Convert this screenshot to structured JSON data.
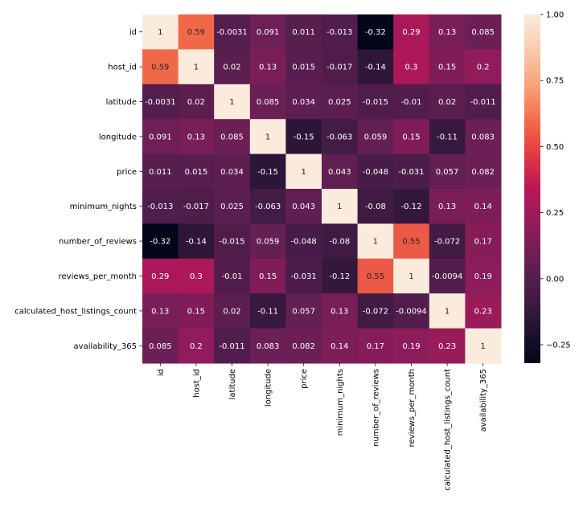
{
  "chart_data": {
    "type": "heatmap",
    "title": "",
    "xlabel": "",
    "ylabel": "",
    "labels": [
      "id",
      "host_id",
      "latitude",
      "longitude",
      "price",
      "minimum_nights",
      "number_of_reviews",
      "reviews_per_month",
      "calculated_host_listings_count",
      "availability_365"
    ],
    "matrix": [
      [
        1,
        0.59,
        -0.0031,
        0.091,
        0.011,
        -0.013,
        -0.32,
        0.29,
        0.13,
        0.085
      ],
      [
        0.59,
        1,
        0.02,
        0.13,
        0.015,
        -0.017,
        -0.14,
        0.3,
        0.15,
        0.2
      ],
      [
        -0.0031,
        0.02,
        1,
        0.085,
        0.034,
        0.025,
        -0.015,
        -0.01,
        0.02,
        -0.011
      ],
      [
        0.091,
        0.13,
        0.085,
        1,
        -0.15,
        -0.063,
        0.059,
        0.15,
        -0.11,
        0.083
      ],
      [
        0.011,
        0.015,
        0.034,
        -0.15,
        1,
        0.043,
        -0.048,
        -0.031,
        0.057,
        0.082
      ],
      [
        -0.013,
        -0.017,
        0.025,
        -0.063,
        0.043,
        1,
        -0.08,
        -0.12,
        0.13,
        0.14
      ],
      [
        -0.32,
        -0.14,
        -0.015,
        0.059,
        -0.048,
        -0.08,
        1,
        0.55,
        -0.072,
        0.17
      ],
      [
        0.29,
        0.3,
        -0.01,
        0.15,
        -0.031,
        -0.12,
        0.55,
        1,
        -0.0094,
        0.19
      ],
      [
        0.13,
        0.15,
        0.02,
        -0.11,
        0.057,
        0.13,
        -0.072,
        -0.0094,
        1,
        0.23
      ],
      [
        0.085,
        0.2,
        -0.011,
        0.083,
        0.082,
        0.14,
        0.17,
        0.19,
        0.23,
        1
      ]
    ],
    "annotated": true,
    "colormap": "rocket",
    "colorbar": {
      "range": [
        -0.32,
        1.0
      ],
      "ticks": [
        1.0,
        0.75,
        0.5,
        0.25,
        0.0,
        -0.25
      ],
      "tick_labels": [
        "1.00",
        "0.75",
        "0.50",
        "0.25",
        "0.00",
        "−0.25"
      ]
    },
    "colors": {
      "low": "#03051a",
      "high": "#faebdd",
      "text_dark": "#262626",
      "text_light": "#ffffff"
    }
  }
}
